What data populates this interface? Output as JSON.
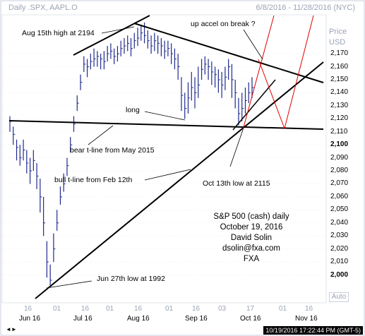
{
  "window": {
    "title_left": "Daily .SPX, AAPL.O",
    "title_right": "6/8/2016 - 11/28/2016 (NYC)",
    "price_label_1": "Price",
    "price_label_2": "USD",
    "auto_label": "Auto",
    "timestamp": "10/19/2016 17:22:44 PM (GMT-5)",
    "scroll_indicator": "◄►"
  },
  "colors": {
    "background": "#ffffff",
    "candle": "#1f2a8c",
    "trendline": "#000000",
    "projection": "#e00000",
    "grid": "#d8dde8",
    "minor_text": "#9aa3b5"
  },
  "chart_data": {
    "type": "line",
    "title": "S&P 500 (cash) daily",
    "xlabel": "",
    "ylabel": "Price USD",
    "ylim": [
      1990,
      2195
    ],
    "grid": true,
    "y_ticks": [
      2000,
      2010,
      2020,
      2030,
      2040,
      2050,
      2060,
      2070,
      2080,
      2090,
      2100,
      2110,
      2120,
      2130,
      2140,
      2150,
      2160,
      2170
    ],
    "y_major_ticks": [
      2000,
      2100
    ],
    "x_major_ticks": [
      "Jun 16",
      "Jul 16",
      "Aug 16",
      "Sep 16",
      "Oct 16",
      "Nov 16"
    ],
    "x_minor_ticks": [
      "16",
      "01",
      "16",
      "01",
      "16",
      "01",
      "16",
      "03",
      "17",
      "01",
      "16"
    ],
    "annotations": [
      "Aug 15th high at 2194",
      "up accel on break ?",
      "long",
      "bear t-line from May 2015",
      "bull t-line from Feb 12th",
      "Oct 13th low at 2115",
      "Jun 27th low at 1992"
    ],
    "credit": [
      "S&P 500 (cash) daily",
      "October 19, 2016",
      "David Solin",
      "dsolin@fxa.com",
      "FXA"
    ],
    "series": [
      {
        "type": "hlc",
        "points": [
          [
            2118,
            2122,
            2110
          ],
          [
            2108,
            2114,
            2100
          ],
          [
            2098,
            2104,
            2088
          ],
          [
            2090,
            2100,
            2084
          ],
          [
            2096,
            2104,
            2088
          ],
          [
            2086,
            2096,
            2078
          ],
          [
            2080,
            2090,
            2070
          ],
          [
            2088,
            2096,
            2080
          ],
          [
            2076,
            2086,
            2066
          ],
          [
            2060,
            2074,
            2048
          ],
          [
            2040,
            2060,
            2030
          ],
          [
            2010,
            2026,
            1998
          ],
          [
            1996,
            2008,
            1992
          ],
          [
            2020,
            2032,
            2010
          ],
          [
            2040,
            2050,
            2034
          ],
          [
            2060,
            2068,
            2054
          ],
          [
            2070,
            2078,
            2064
          ],
          [
            2084,
            2090,
            2076
          ],
          [
            2100,
            2106,
            2094
          ],
          [
            2116,
            2122,
            2110
          ],
          [
            2132,
            2138,
            2126
          ],
          [
            2148,
            2154,
            2142
          ],
          [
            2162,
            2168,
            2156
          ],
          [
            2160,
            2166,
            2152
          ],
          [
            2164,
            2170,
            2158
          ],
          [
            2166,
            2174,
            2160
          ],
          [
            2168,
            2172,
            2160
          ],
          [
            2166,
            2170,
            2158
          ],
          [
            2164,
            2172,
            2158
          ],
          [
            2170,
            2176,
            2164
          ],
          [
            2172,
            2178,
            2166
          ],
          [
            2168,
            2174,
            2162
          ],
          [
            2170,
            2176,
            2164
          ],
          [
            2174,
            2180,
            2168
          ],
          [
            2176,
            2182,
            2170
          ],
          [
            2178,
            2184,
            2172
          ],
          [
            2174,
            2182,
            2168
          ],
          [
            2180,
            2186,
            2174
          ],
          [
            2182,
            2190,
            2176
          ],
          [
            2186,
            2192,
            2180
          ],
          [
            2184,
            2194,
            2178
          ],
          [
            2180,
            2188,
            2174
          ],
          [
            2176,
            2184,
            2170
          ],
          [
            2180,
            2186,
            2172
          ],
          [
            2178,
            2184,
            2170
          ],
          [
            2176,
            2182,
            2168
          ],
          [
            2172,
            2180,
            2166
          ],
          [
            2174,
            2180,
            2168
          ],
          [
            2170,
            2178,
            2162
          ],
          [
            2166,
            2174,
            2158
          ],
          [
            2160,
            2170,
            2150
          ],
          [
            2138,
            2152,
            2126
          ],
          [
            2128,
            2140,
            2120
          ],
          [
            2136,
            2148,
            2124
          ],
          [
            2144,
            2156,
            2134
          ],
          [
            2140,
            2152,
            2128
          ],
          [
            2146,
            2160,
            2136
          ],
          [
            2158,
            2166,
            2150
          ],
          [
            2162,
            2168,
            2154
          ],
          [
            2160,
            2166,
            2150
          ],
          [
            2156,
            2164,
            2146
          ],
          [
            2154,
            2160,
            2144
          ],
          [
            2150,
            2158,
            2140
          ],
          [
            2146,
            2156,
            2136
          ],
          [
            2152,
            2160,
            2142
          ],
          [
            2160,
            2166,
            2150
          ],
          [
            2150,
            2162,
            2136
          ],
          [
            2140,
            2150,
            2128
          ],
          [
            2124,
            2136,
            2115
          ],
          [
            2128,
            2140,
            2118
          ],
          [
            2134,
            2144,
            2124
          ],
          [
            2140,
            2148,
            2132
          ],
          [
            2144,
            2152,
            2136
          ]
        ]
      }
    ]
  }
}
